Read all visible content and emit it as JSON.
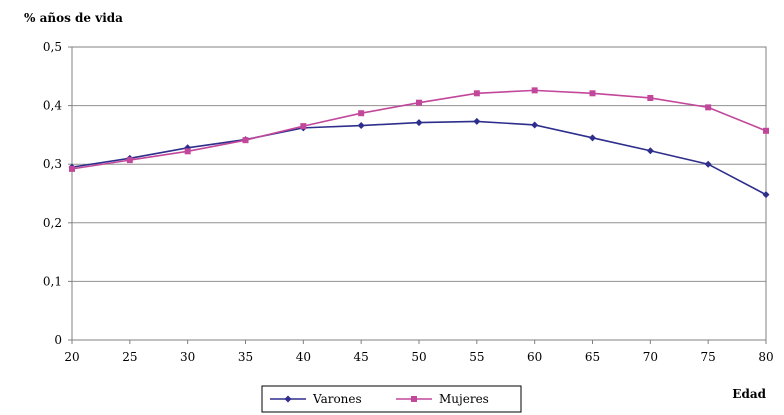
{
  "chart_data": {
    "type": "line",
    "title": "",
    "ylabel": "% años de vida",
    "xlabel": "Edad",
    "x": [
      20,
      25,
      30,
      35,
      40,
      45,
      50,
      55,
      60,
      65,
      70,
      75,
      80
    ],
    "xlim": [
      20,
      80
    ],
    "ylim": [
      0,
      0.5
    ],
    "yticks": [
      0,
      0.1,
      0.2,
      0.3,
      0.4,
      0.5
    ],
    "ytick_labels": [
      "0",
      "0,1",
      "0,2",
      "0,3",
      "0,4",
      "0,5"
    ],
    "xtick_labels": [
      "20",
      "25",
      "30",
      "35",
      "40",
      "45",
      "50",
      "55",
      "60",
      "65",
      "70",
      "75",
      "80"
    ],
    "grid": "horizontal",
    "legend_position": "bottom",
    "series": [
      {
        "name": "Varones",
        "color": "#2e2e8c",
        "marker": "diamond",
        "values": [
          0.295,
          0.31,
          0.328,
          0.342,
          0.362,
          0.366,
          0.371,
          0.373,
          0.367,
          0.345,
          0.323,
          0.3,
          0.248
        ]
      },
      {
        "name": "Mujeres",
        "color": "#c2479b",
        "marker": "square",
        "values": [
          0.292,
          0.307,
          0.322,
          0.341,
          0.365,
          0.387,
          0.405,
          0.421,
          0.426,
          0.421,
          0.413,
          0.397,
          0.357
        ]
      }
    ]
  }
}
